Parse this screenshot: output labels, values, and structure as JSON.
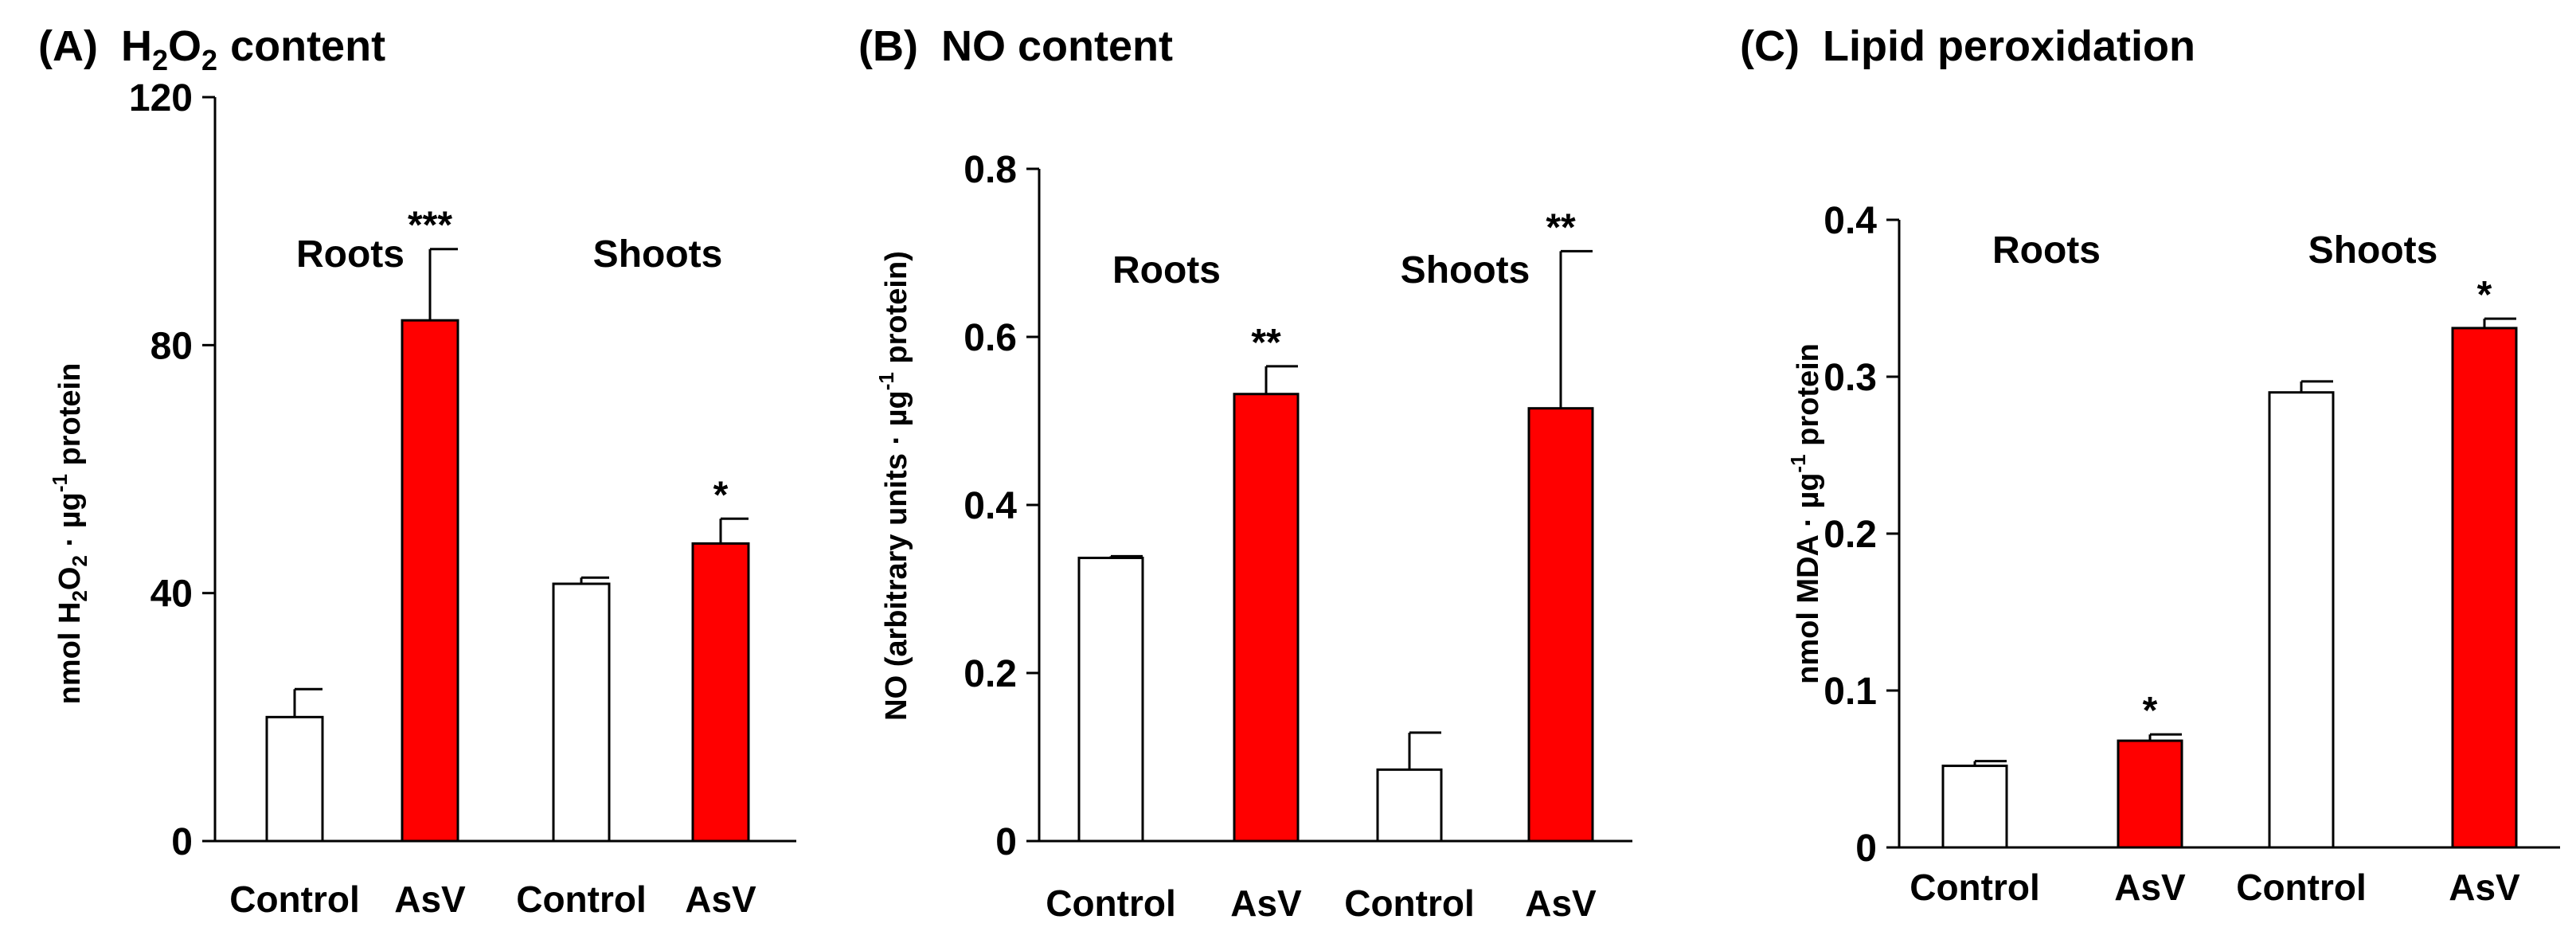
{
  "colors": {
    "control_fill": "#ffffff",
    "asv_fill": "#ff0000",
    "stroke": "#000000"
  },
  "chart_data": [
    {
      "type": "bar",
      "panel": "(A)",
      "title": "H2O2 content",
      "title_parts": {
        "panel": "(A)",
        "h": "H",
        "sub1": "2",
        "o": "O",
        "sub2": "2",
        "rest": "content"
      },
      "ylabel": "nmol H2O2 · µg-1 protein",
      "ylabel_parts": {
        "a": "nmol H",
        "sub1": "2",
        "b": "O",
        "sub2": "2",
        "c": " · µg",
        "sup": "-1",
        "d": " protein"
      },
      "ylim": [
        0,
        120
      ],
      "yticks": [
        0,
        40,
        80,
        120
      ],
      "ytick_labels": [
        "0",
        "40",
        "80",
        "120"
      ],
      "categories": [
        "Control",
        "AsV",
        "Control",
        "AsV"
      ],
      "groups": [
        "Roots",
        "Shoots"
      ],
      "values": [
        20,
        84,
        41.5,
        48
      ],
      "errors": [
        4.5,
        11.5,
        1,
        4
      ],
      "significance": [
        "",
        "***",
        "",
        "*"
      ],
      "fill_keys": [
        "control_fill",
        "asv_fill",
        "control_fill",
        "asv_fill"
      ]
    },
    {
      "type": "bar",
      "panel": "(B)",
      "title": "NO content",
      "title_parts": {
        "panel": "(B)",
        "rest": "NO content"
      },
      "ylabel": "NO (arbitrary units · µg-1 protein)",
      "ylabel_parts": {
        "a": "NO (arbitrary units · µg",
        "sup": "-1",
        "b": " protein)"
      },
      "ylim": [
        0,
        0.8
      ],
      "yticks": [
        0,
        0.2,
        0.4,
        0.6,
        0.8
      ],
      "ytick_labels": [
        "0",
        "0.2",
        "0.4",
        "0.6",
        "0.8"
      ],
      "categories": [
        "Control",
        "AsV",
        "Control",
        "AsV"
      ],
      "groups": [
        "Roots",
        "Shoots"
      ],
      "values": [
        0.337,
        0.532,
        0.085,
        0.515
      ],
      "errors": [
        0.002,
        0.033,
        0.044,
        0.187
      ],
      "significance": [
        "",
        "**",
        "",
        "**"
      ],
      "fill_keys": [
        "control_fill",
        "asv_fill",
        "control_fill",
        "asv_fill"
      ]
    },
    {
      "type": "bar",
      "panel": "(C)",
      "title": "Lipid peroxidation",
      "title_parts": {
        "panel": "(C)",
        "rest": "Lipid peroxidation"
      },
      "ylabel": "nmol MDA · µg-1 protein",
      "ylabel_parts": {
        "a": "nmol MDA · µg",
        "sup": "-1",
        "b": " protein"
      },
      "ylim": [
        0,
        0.4
      ],
      "yticks": [
        0,
        0.1,
        0.2,
        0.3,
        0.4
      ],
      "ytick_labels": [
        "0",
        "0.1",
        "0.2",
        "0.3",
        "0.4"
      ],
      "categories": [
        "Control",
        "AsV",
        "Control",
        "AsV"
      ],
      "groups": [
        "Roots",
        "Shoots"
      ],
      "values": [
        0.052,
        0.068,
        0.29,
        0.331
      ],
      "errors": [
        0.003,
        0.004,
        0.007,
        0.006
      ],
      "significance": [
        "",
        "*",
        "",
        "*"
      ],
      "fill_keys": [
        "control_fill",
        "asv_fill",
        "control_fill",
        "asv_fill"
      ]
    }
  ]
}
